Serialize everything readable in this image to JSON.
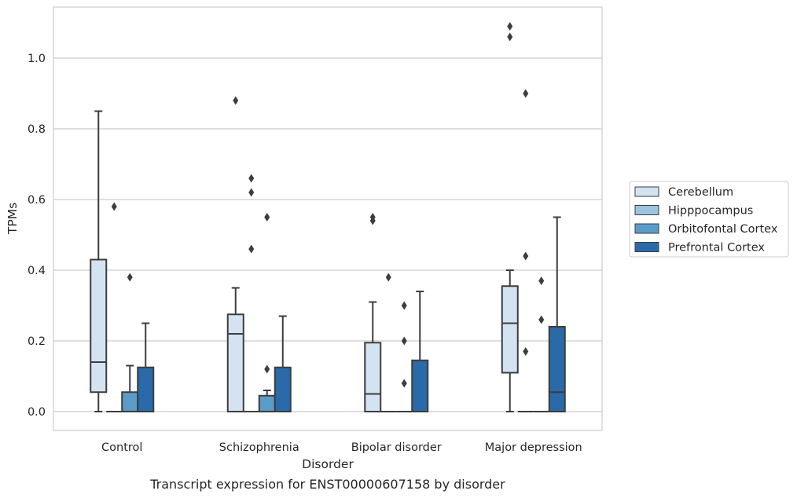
{
  "chart_data": {
    "type": "box",
    "title": "",
    "caption": "Transcript expression for ENST00000607158 by disorder",
    "xlabel": "Disorder",
    "ylabel": "TPMs",
    "ylim": [
      -0.05,
      1.15
    ],
    "yticks": [
      0.0,
      0.2,
      0.4,
      0.6,
      0.8,
      1.0
    ],
    "ytick_labels": [
      "0.0",
      "0.2",
      "0.4",
      "0.6",
      "0.8",
      "1.0"
    ],
    "grid": "horizontal",
    "legend_position": "right",
    "categories": [
      "Control",
      "Schizophrenia",
      "Bipolar disorder",
      "Major depression"
    ],
    "series": [
      {
        "name": "Cerebellum",
        "color": "#d4e3f1",
        "boxes": [
          {
            "whisker_low": 0.0,
            "q1": 0.055,
            "median": 0.14,
            "q3": 0.43,
            "whisker_high": 0.85,
            "outliers": []
          },
          {
            "whisker_low": 0.0,
            "q1": 0.0,
            "median": 0.22,
            "q3": 0.275,
            "whisker_high": 0.35,
            "outliers": [
              0.88
            ]
          },
          {
            "whisker_low": 0.0,
            "q1": 0.0,
            "median": 0.05,
            "q3": 0.195,
            "whisker_high": 0.31,
            "outliers": [
              0.54,
              0.55
            ]
          },
          {
            "whisker_low": 0.0,
            "q1": 0.11,
            "median": 0.25,
            "q3": 0.355,
            "whisker_high": 0.4,
            "outliers": [
              1.06,
              1.09
            ]
          }
        ]
      },
      {
        "name": "Hipppocampus",
        "color": "#9dc3de",
        "boxes": [
          {
            "whisker_low": 0.0,
            "q1": 0.0,
            "median": 0.0,
            "q3": 0.0,
            "whisker_high": 0.0,
            "outliers": [
              0.58
            ]
          },
          {
            "whisker_low": 0.0,
            "q1": 0.0,
            "median": 0.0,
            "q3": 0.0,
            "whisker_high": 0.0,
            "outliers": [
              0.46,
              0.62,
              0.66
            ]
          },
          {
            "whisker_low": 0.0,
            "q1": 0.0,
            "median": 0.0,
            "q3": 0.0,
            "whisker_high": 0.0,
            "outliers": [
              0.38
            ]
          },
          {
            "whisker_low": 0.0,
            "q1": 0.0,
            "median": 0.0,
            "q3": 0.0,
            "whisker_high": 0.0,
            "outliers": [
              0.17,
              0.44,
              0.9
            ]
          }
        ]
      },
      {
        "name": "Orbitofontal Cortex",
        "color": "#5b9bc8",
        "boxes": [
          {
            "whisker_low": 0.0,
            "q1": 0.0,
            "median": 0.0,
            "q3": 0.055,
            "whisker_high": 0.13,
            "outliers": [
              0.38
            ]
          },
          {
            "whisker_low": 0.0,
            "q1": 0.0,
            "median": 0.0,
            "q3": 0.045,
            "whisker_high": 0.06,
            "outliers": [
              0.12,
              0.55
            ]
          },
          {
            "whisker_low": 0.0,
            "q1": 0.0,
            "median": 0.0,
            "q3": 0.0,
            "whisker_high": 0.0,
            "outliers": [
              0.08,
              0.2,
              0.3
            ]
          },
          {
            "whisker_low": 0.0,
            "q1": 0.0,
            "median": 0.0,
            "q3": 0.0,
            "whisker_high": 0.0,
            "outliers": [
              0.26,
              0.37
            ]
          }
        ]
      },
      {
        "name": "Prefrontal Cortex",
        "color": "#2a6aa8",
        "boxes": [
          {
            "whisker_low": 0.0,
            "q1": 0.0,
            "median": 0.0,
            "q3": 0.125,
            "whisker_high": 0.25,
            "outliers": []
          },
          {
            "whisker_low": 0.0,
            "q1": 0.0,
            "median": 0.0,
            "q3": 0.125,
            "whisker_high": 0.27,
            "outliers": []
          },
          {
            "whisker_low": 0.0,
            "q1": 0.0,
            "median": 0.0,
            "q3": 0.145,
            "whisker_high": 0.34,
            "outliers": []
          },
          {
            "whisker_low": 0.0,
            "q1": 0.0,
            "median": 0.055,
            "q3": 0.24,
            "whisker_high": 0.55,
            "outliers": []
          }
        ]
      }
    ]
  }
}
